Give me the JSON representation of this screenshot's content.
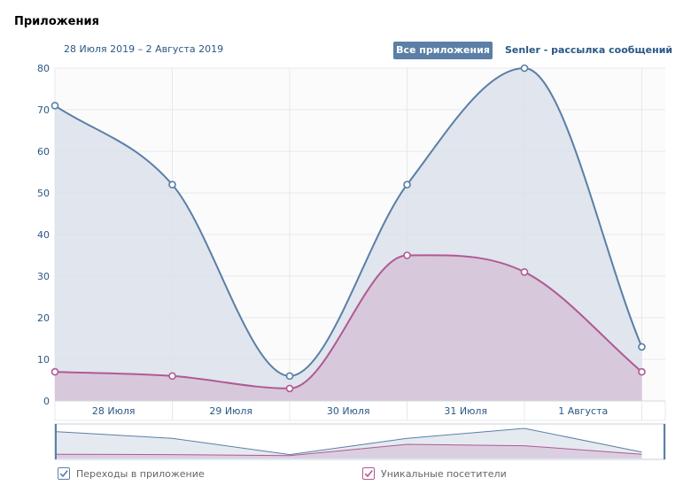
{
  "page": {
    "title": "Приложения",
    "date_range": "28 Июля 2019 – 2 Августа 2019",
    "tabs": {
      "all_apps": "Все приложения",
      "senler": "Senler - рассылка сообщений"
    }
  },
  "colors": {
    "series1": "#5b7fa6",
    "series1_fill": "#dae1eb",
    "series2": "#b05a93",
    "series2_fill": "#d6c3d8",
    "tab_active_bg": "#5b7fa6",
    "link": "#2a5885",
    "grid": "#e7e8ec"
  },
  "chart_data": {
    "type": "area",
    "x": [
      0,
      1,
      2,
      3,
      4,
      5
    ],
    "x_tick_labels": [
      "28 Июля",
      "29 Июля",
      "30 Июля",
      "31 Июля",
      "1 Августа"
    ],
    "series": [
      {
        "name": "Переходы в приложение",
        "values": [
          71,
          52,
          6,
          52,
          80,
          13
        ]
      },
      {
        "name": "Уникальные посетители",
        "values": [
          7,
          6,
          3,
          35,
          31,
          7
        ]
      }
    ],
    "ylim": [
      0,
      80
    ],
    "y_ticks": [
      0,
      10,
      20,
      30,
      40,
      50,
      60,
      70,
      80
    ],
    "grid": true,
    "legend": "bottom",
    "navigator": true
  }
}
